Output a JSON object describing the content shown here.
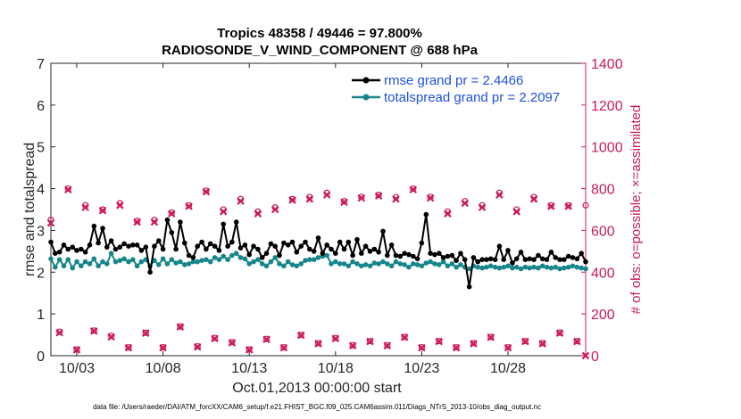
{
  "chart_data": {
    "type": "line",
    "title": "Tropics 48358 / 49446 = 97.800%",
    "subtitle": "RADIOSONDE_V_WIND_COMPONENT @ 688 hPa",
    "xlabel": "Oct.01,2013 00:00:00 start",
    "ylabel": "rmse and totalspread",
    "ylabel_right": "# of obs: o=possible; ×=assimilated",
    "footer": "data file: /Users/raeder/DAI/ATM_forcXX/CAM6_setup/f.e21.FHIST_BGC.f09_025.CAM6assim.011/Diags_NTrS_2013-10/obs_diag_output.nc",
    "xlim": [
      1.5,
      32.5
    ],
    "ylim": [
      0,
      7
    ],
    "ylim_right": [
      0,
      1400
    ],
    "xticks": [
      3,
      8,
      13,
      18,
      23,
      28
    ],
    "xtick_labels": [
      "10/03",
      "10/08",
      "10/13",
      "10/18",
      "10/23",
      "10/28"
    ],
    "yticks": [
      0,
      1,
      2,
      3,
      4,
      5,
      6,
      7
    ],
    "yticks_right": [
      0,
      200,
      400,
      600,
      800,
      1000,
      1200,
      1400
    ],
    "grid": false,
    "legend_position": "top-right",
    "x": [
      1.5,
      1.75,
      2.0,
      2.25,
      2.5,
      2.75,
      3.0,
      3.25,
      3.5,
      3.75,
      4.0,
      4.25,
      4.5,
      4.75,
      5.0,
      5.25,
      5.5,
      5.75,
      6.0,
      6.25,
      6.5,
      6.75,
      7.0,
      7.25,
      7.5,
      7.75,
      8.0,
      8.25,
      8.5,
      8.75,
      9.0,
      9.25,
      9.5,
      9.75,
      10.0,
      10.25,
      10.5,
      10.75,
      11.0,
      11.25,
      11.5,
      11.75,
      12.0,
      12.25,
      12.5,
      12.75,
      13.0,
      13.25,
      13.5,
      13.75,
      14.0,
      14.25,
      14.5,
      14.75,
      15.0,
      15.25,
      15.5,
      15.75,
      16.0,
      16.25,
      16.5,
      16.75,
      17.0,
      17.25,
      17.5,
      17.75,
      18.0,
      18.25,
      18.5,
      18.75,
      19.0,
      19.25,
      19.5,
      19.75,
      20.0,
      20.25,
      20.5,
      20.75,
      21.0,
      21.25,
      21.5,
      21.75,
      22.0,
      22.25,
      22.5,
      22.75,
      23.0,
      23.25,
      23.5,
      23.75,
      24.0,
      24.25,
      24.5,
      24.75,
      25.0,
      25.25,
      25.5,
      25.75,
      26.0,
      26.25,
      26.5,
      26.75,
      27.0,
      27.25,
      27.5,
      27.75,
      28.0,
      28.25,
      28.5,
      28.75,
      29.0,
      29.25,
      29.5,
      29.75,
      30.0,
      30.25,
      30.5,
      30.75,
      31.0,
      31.25,
      31.5,
      31.75,
      32.0,
      32.25,
      32.5
    ],
    "series": [
      {
        "name": "rmse grand pr = 2.4466",
        "color": "#000000",
        "values": [
          2.72,
          2.45,
          2.48,
          2.65,
          2.55,
          2.6,
          2.52,
          2.55,
          2.48,
          2.65,
          3.1,
          2.7,
          3.05,
          2.6,
          2.75,
          2.55,
          2.6,
          2.68,
          2.62,
          2.65,
          2.65,
          2.52,
          2.6,
          2.0,
          2.62,
          2.75,
          2.55,
          3.25,
          2.95,
          2.55,
          3.2,
          2.7,
          2.4,
          2.35,
          2.62,
          2.72,
          2.55,
          2.68,
          2.62,
          2.52,
          3.15,
          2.62,
          2.72,
          3.2,
          2.58,
          2.65,
          2.42,
          2.62,
          2.55,
          2.35,
          2.45,
          2.68,
          2.62,
          2.4,
          2.7,
          2.65,
          2.72,
          2.48,
          2.62,
          2.72,
          2.55,
          2.5,
          2.82,
          2.45,
          2.65,
          2.55,
          2.45,
          2.72,
          2.55,
          2.72,
          2.4,
          2.78,
          2.45,
          2.62,
          2.5,
          2.55,
          2.48,
          2.98,
          2.4,
          2.65,
          2.4,
          2.38,
          2.45,
          2.42,
          2.38,
          2.32,
          2.7,
          3.38,
          2.45,
          2.42,
          2.45,
          2.35,
          2.38,
          2.4,
          2.28,
          2.45,
          2.3,
          1.65,
          2.35,
          2.25,
          2.3,
          2.3,
          2.32,
          2.3,
          2.62,
          2.3,
          2.52,
          2.22,
          2.32,
          2.48,
          2.3,
          2.32,
          2.3,
          2.4,
          2.32,
          2.3,
          2.48,
          2.35,
          2.3,
          2.3,
          2.38,
          2.35,
          2.32,
          2.45,
          2.25
        ],
        "marker": "dot"
      },
      {
        "name": "totalspread grand pr = 2.2097",
        "color": "#16868a",
        "values": [
          2.32,
          2.12,
          2.3,
          2.15,
          2.3,
          2.1,
          2.25,
          2.15,
          2.25,
          2.2,
          2.32,
          2.15,
          2.25,
          2.2,
          2.45,
          2.25,
          2.28,
          2.32,
          2.25,
          2.3,
          2.15,
          2.25,
          2.3,
          2.15,
          2.28,
          2.18,
          2.32,
          2.2,
          2.3,
          2.22,
          2.25,
          2.18,
          2.2,
          2.25,
          2.25,
          2.28,
          2.3,
          2.25,
          2.35,
          2.3,
          2.38,
          2.3,
          2.4,
          2.45,
          2.35,
          2.32,
          2.2,
          2.25,
          2.3,
          2.2,
          2.15,
          2.25,
          2.35,
          2.2,
          2.15,
          2.25,
          2.18,
          2.15,
          2.2,
          2.28,
          2.3,
          2.3,
          2.35,
          2.38,
          2.4,
          2.2,
          2.25,
          2.2,
          2.2,
          2.15,
          2.25,
          2.2,
          2.15,
          2.18,
          2.15,
          2.22,
          2.2,
          2.25,
          2.2,
          2.15,
          2.25,
          2.2,
          2.18,
          2.12,
          2.2,
          2.18,
          2.15,
          2.22,
          2.25,
          2.2,
          2.18,
          2.25,
          2.15,
          2.2,
          2.12,
          2.18,
          2.12,
          2.08,
          2.15,
          2.12,
          2.1,
          2.12,
          2.15,
          2.12,
          2.1,
          2.12,
          2.15,
          2.1,
          2.12,
          2.08,
          2.12,
          2.1,
          2.12,
          2.1,
          2.15,
          2.12,
          2.1,
          2.12,
          2.08,
          2.1,
          2.12,
          2.15,
          2.12,
          2.1,
          2.08
        ],
        "marker": "dot"
      }
    ],
    "obs_counts": {
      "color": "#cc1a5c",
      "x": [
        1.5,
        2.0,
        2.5,
        3.0,
        3.5,
        4.0,
        4.5,
        5.0,
        5.5,
        6.0,
        6.5,
        7.0,
        7.5,
        8.0,
        8.5,
        9.0,
        9.5,
        10.0,
        10.5,
        11.0,
        11.5,
        12.0,
        12.5,
        13.0,
        13.5,
        14.0,
        14.5,
        15.0,
        15.5,
        16.0,
        16.5,
        17.0,
        17.5,
        18.0,
        18.5,
        19.0,
        19.5,
        20.0,
        20.5,
        21.0,
        21.5,
        22.0,
        22.5,
        23.0,
        23.5,
        24.0,
        24.5,
        25.0,
        25.5,
        26.0,
        26.5,
        27.0,
        27.5,
        28.0,
        28.5,
        29.0,
        29.5,
        30.0,
        30.5,
        31.0,
        31.5,
        32.0,
        32.5
      ],
      "possible": [
        650,
        115,
        800,
        30,
        720,
        120,
        700,
        95,
        730,
        40,
        645,
        110,
        650,
        40,
        685,
        140,
        720,
        45,
        790,
        85,
        700,
        65,
        750,
        30,
        690,
        80,
        710,
        40,
        750,
        100,
        760,
        60,
        780,
        85,
        740,
        50,
        760,
        70,
        770,
        50,
        760,
        90,
        800,
        40,
        760,
        70,
        690,
        40,
        740,
        60,
        720,
        90,
        780,
        40,
        700,
        70,
        760,
        60,
        720,
        110,
        720,
        70,
        720
      ],
      "assimilated": [
        635,
        110,
        795,
        28,
        710,
        118,
        695,
        90,
        720,
        38,
        640,
        108,
        640,
        38,
        680,
        138,
        715,
        42,
        785,
        82,
        690,
        62,
        740,
        28,
        680,
        78,
        700,
        38,
        745,
        98,
        750,
        58,
        770,
        82,
        735,
        48,
        755,
        68,
        765,
        48,
        750,
        88,
        795,
        38,
        755,
        68,
        680,
        38,
        730,
        58,
        710,
        88,
        770,
        38,
        690,
        68,
        750,
        58,
        715,
        108,
        715,
        68,
        0
      ]
    }
  }
}
